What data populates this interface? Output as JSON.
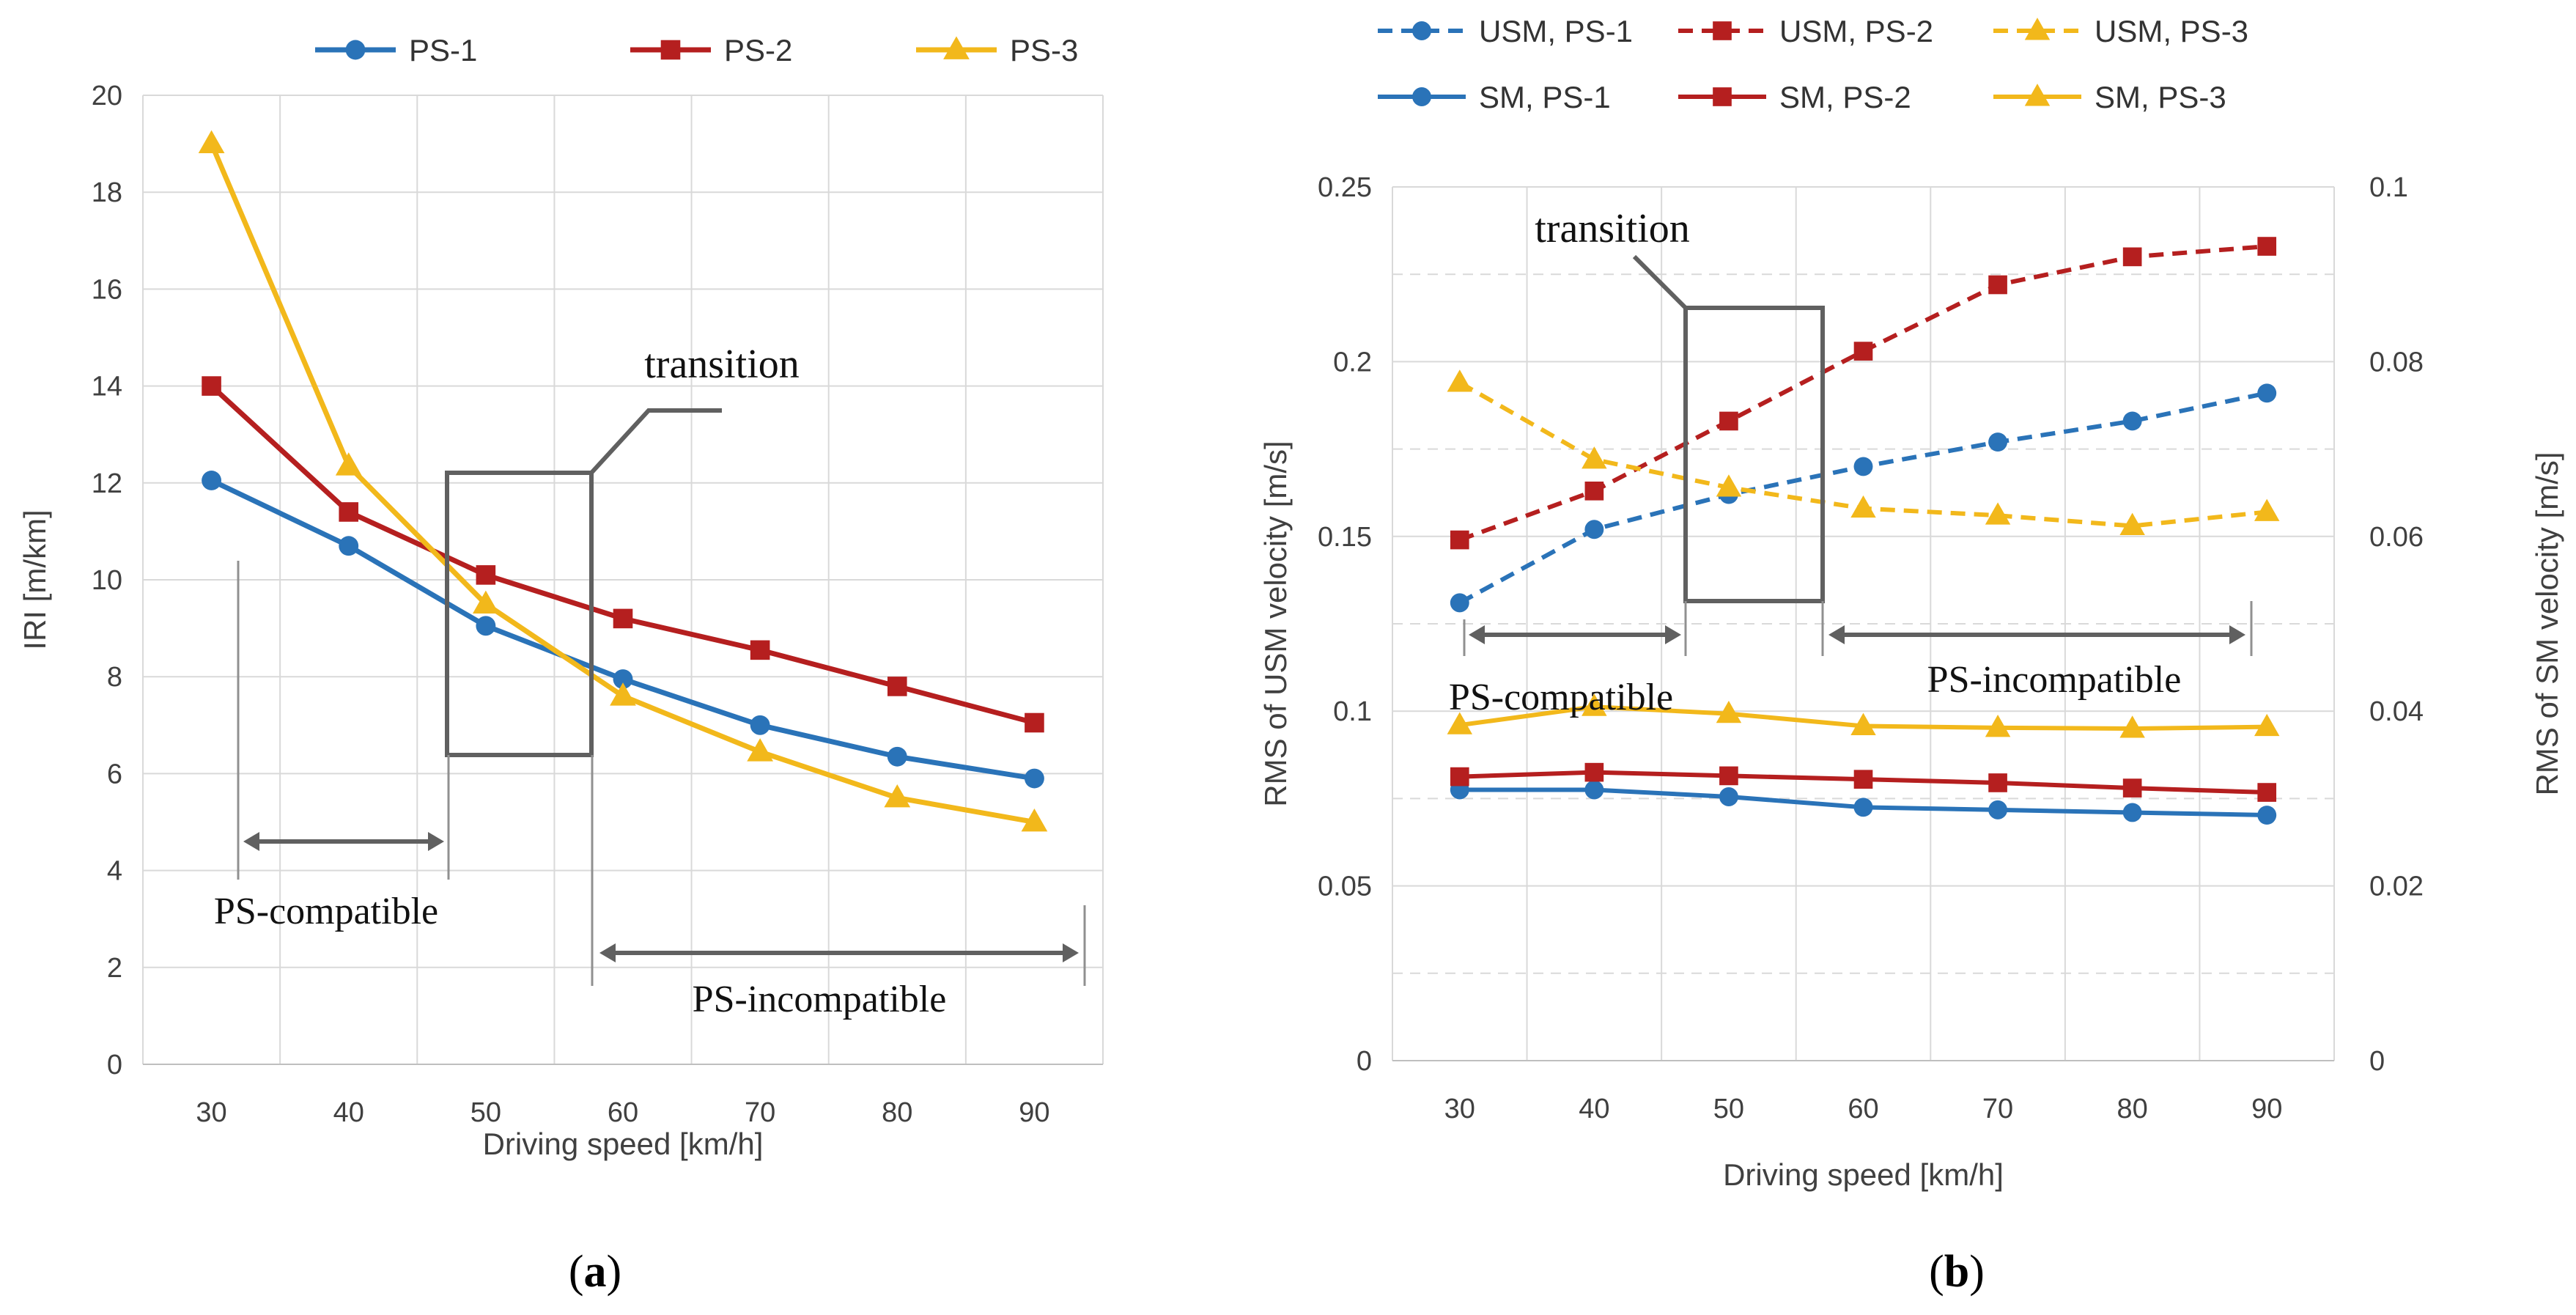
{
  "colors": {
    "ps1": "#2A73B8",
    "ps2": "#B51F1F",
    "ps3": "#F2B81B",
    "annotation": "#606060",
    "grid": "#D9D9D9",
    "text": "#404040"
  },
  "panel_labels": {
    "a_open": "(",
    "a_letter": "a",
    "a_close": ")",
    "b_open": "(",
    "b_letter": "b",
    "b_close": ")"
  },
  "chart_data": [
    {
      "type": "line",
      "panel": "a",
      "title": "",
      "xlabel": "Driving speed [km/h]",
      "ylabel": "IRI [m/km]",
      "x": [
        30,
        40,
        50,
        60,
        70,
        80,
        90
      ],
      "x_tick_labels": [
        "30",
        "40",
        "50",
        "60",
        "70",
        "80",
        "90"
      ],
      "y_tick_labels": [
        "0",
        "2",
        "4",
        "6",
        "8",
        "10",
        "12",
        "14",
        "16",
        "18",
        "20"
      ],
      "ylim": [
        0,
        20
      ],
      "grid": true,
      "legend_position": "top",
      "series": [
        {
          "name": "PS-1",
          "color": "#2A73B8",
          "marker": "circle",
          "dash": "solid",
          "values": [
            12.05,
            10.7,
            9.05,
            7.95,
            7.0,
            6.35,
            5.9
          ]
        },
        {
          "name": "PS-2",
          "color": "#B51F1F",
          "marker": "square",
          "dash": "solid",
          "values": [
            14.0,
            11.4,
            10.1,
            9.2,
            8.55,
            7.8,
            7.05
          ]
        },
        {
          "name": "PS-3",
          "color": "#F2B81B",
          "marker": "triangle",
          "dash": "solid",
          "values": [
            19.0,
            12.35,
            9.5,
            7.6,
            6.45,
            5.5,
            5.0
          ]
        }
      ],
      "annotations": {
        "transition": "transition",
        "compatible": "PS-compatible",
        "incompatible": "PS-incompatible"
      }
    },
    {
      "type": "line",
      "panel": "b",
      "title": "",
      "xlabel": "Driving speed [km/h]",
      "ylabel": "RMS of USM velocity [m/s]",
      "ylabel_right": "RMS of SM velocity [m/s]",
      "x": [
        30,
        40,
        50,
        60,
        70,
        80,
        90
      ],
      "x_tick_labels": [
        "30",
        "40",
        "50",
        "60",
        "70",
        "80",
        "90"
      ],
      "y_tick_labels": [
        "0",
        "0.05",
        "0.1",
        "0.15",
        "0.2",
        "0.25"
      ],
      "y2_tick_labels": [
        "0",
        "0.02",
        "0.04",
        "0.06",
        "0.08",
        "0.1"
      ],
      "ylim": [
        0,
        0.25
      ],
      "ylim_right": [
        0,
        0.1
      ],
      "grid": true,
      "legend_position": "top",
      "series": [
        {
          "name": "USM, PS-1",
          "color": "#2A73B8",
          "marker": "circle",
          "dash": "dashed",
          "axis": "left",
          "values": [
            0.131,
            0.152,
            0.162,
            0.17,
            0.177,
            0.183,
            0.191
          ]
        },
        {
          "name": "USM, PS-2",
          "color": "#B51F1F",
          "marker": "square",
          "dash": "dashed",
          "axis": "left",
          "values": [
            0.149,
            0.163,
            0.183,
            0.203,
            0.222,
            0.23,
            0.233
          ]
        },
        {
          "name": "USM, PS-3",
          "color": "#F2B81B",
          "marker": "triangle",
          "dash": "dashed",
          "axis": "left",
          "values": [
            0.194,
            0.172,
            0.164,
            0.158,
            0.156,
            0.153,
            0.157
          ]
        },
        {
          "name": "SM, PS-1",
          "color": "#2A73B8",
          "marker": "circle",
          "dash": "solid",
          "axis": "right",
          "values": [
            0.031,
            0.031,
            0.0302,
            0.029,
            0.0287,
            0.0284,
            0.0281
          ]
        },
        {
          "name": "SM, PS-2",
          "color": "#B51F1F",
          "marker": "square",
          "dash": "solid",
          "axis": "right",
          "values": [
            0.0325,
            0.033,
            0.0326,
            0.0322,
            0.0318,
            0.0312,
            0.0307
          ]
        },
        {
          "name": "SM, PS-3",
          "color": "#F2B81B",
          "marker": "triangle",
          "dash": "solid",
          "axis": "right",
          "values": [
            0.0384,
            0.0405,
            0.0397,
            0.0383,
            0.0381,
            0.038,
            0.0382
          ]
        }
      ],
      "annotations": {
        "transition": "transition",
        "compatible": "PS-compatible",
        "incompatible": "PS-incompatible"
      }
    }
  ]
}
